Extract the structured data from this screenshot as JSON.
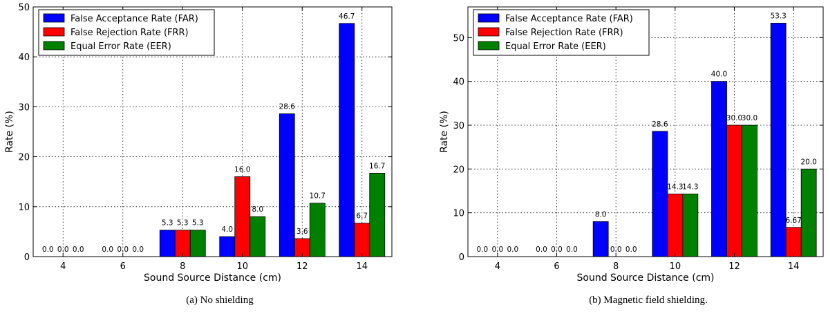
{
  "chart_data": [
    {
      "type": "bar",
      "caption": "(a)  No shielding",
      "xlabel": "Sound Source Distance (cm)",
      "ylabel": "Rate (%)",
      "categories": [
        "4",
        "6",
        "8",
        "10",
        "12",
        "14"
      ],
      "ylim": [
        0,
        50
      ],
      "yticks": [
        0,
        10,
        20,
        30,
        40,
        50
      ],
      "grid": true,
      "legend_position": "top-left",
      "series": [
        {
          "name": "False Acceptance Rate (FAR)",
          "color": "#0000ff",
          "values": [
            0,
            0,
            5.3,
            4.0,
            28.6,
            46.7
          ],
          "labels": [
            "0.0",
            "0.0",
            "5.3",
            "4.0",
            "28.6",
            "46.7"
          ]
        },
        {
          "name": "False Rejection Rate (FRR)",
          "color": "#ff0000",
          "values": [
            0,
            0,
            5.3,
            16.0,
            3.6,
            6.7
          ],
          "labels": [
            "0.0",
            "0.0",
            "5.3",
            "16.0",
            "3.6",
            "6.7"
          ]
        },
        {
          "name": "Equal Error Rate (EER)",
          "color": "#008000",
          "values": [
            0,
            0,
            5.3,
            8.0,
            10.7,
            16.7
          ],
          "labels": [
            "0.0",
            "0.0",
            "5.3",
            "8.0",
            "10.7",
            "16.7"
          ]
        }
      ]
    },
    {
      "type": "bar",
      "caption": "(b)  Magnetic field shielding.",
      "xlabel": "Sound Source Distance (cm)",
      "ylabel": "Rate (%)",
      "categories": [
        "4",
        "6",
        "8",
        "10",
        "12",
        "14"
      ],
      "ylim": [
        0,
        57
      ],
      "yticks": [
        0,
        10,
        20,
        30,
        40,
        50
      ],
      "grid": true,
      "legend_position": "top-left",
      "series": [
        {
          "name": "False Acceptance Rate (FAR)",
          "color": "#0000ff",
          "values": [
            0,
            0,
            8.0,
            28.6,
            40.0,
            53.3
          ],
          "labels": [
            "0.0",
            "0.0",
            "8.0",
            "28.6",
            "40.0",
            "53.3"
          ]
        },
        {
          "name": "False Rejection Rate (FRR)",
          "color": "#ff0000",
          "values": [
            0,
            0,
            0,
            14.3,
            30.0,
            6.67
          ],
          "labels": [
            "0.0",
            "0.0",
            "0.0",
            "14.3",
            "30.0",
            "6.67"
          ]
        },
        {
          "name": "Equal Error Rate (EER)",
          "color": "#008000",
          "values": [
            0,
            0,
            0,
            14.3,
            30.0,
            20.0
          ],
          "labels": [
            "0.0",
            "0.0",
            "0.0",
            "14.3",
            "30.0",
            "20.0"
          ]
        }
      ]
    }
  ]
}
